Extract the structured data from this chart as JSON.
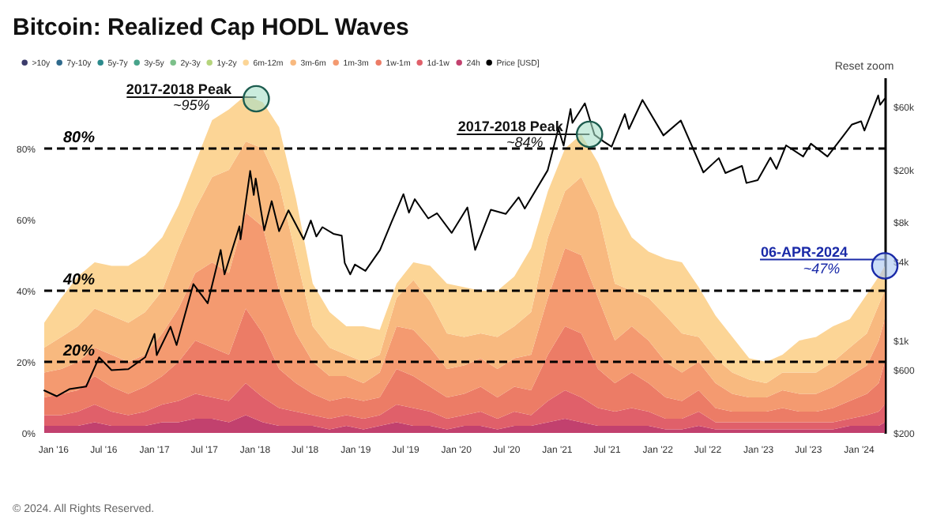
{
  "chart_data": {
    "type": "area",
    "title": "Bitcoin: Realized Cap HODL Waves",
    "stacked": true,
    "log": "y2",
    "legend": "top left",
    "x": [
      "2015-12-01",
      "2016-02",
      "2016-04",
      "2016-06",
      "2016-08",
      "2016-10",
      "2016-12",
      "2017-02",
      "2017-04",
      "2017-06",
      "2017-08",
      "2017-10",
      "2017-12",
      "2018-02",
      "2018-04",
      "2018-06",
      "2018-08",
      "2018-10",
      "2018-12",
      "2019-02",
      "2019-04",
      "2019-06",
      "2019-08",
      "2019-10",
      "2019-12",
      "2020-02",
      "2020-04",
      "2020-06",
      "2020-08",
      "2020-10",
      "2020-12",
      "2021-02",
      "2021-04",
      "2021-06",
      "2021-08",
      "2021-10",
      "2021-12",
      "2022-02",
      "2022-04",
      "2022-06",
      "2022-08",
      "2022-10",
      "2022-12",
      "2023-02",
      "2023-04",
      "2023-06",
      "2023-08",
      "2023-10",
      "2023-12",
      "2024-02",
      "2024-03-15",
      "2024-04-06"
    ],
    "xlim": [
      "2015-12-01",
      "2024-04-06"
    ],
    "xticks": [
      {
        "value": "2016-01",
        "label": "Jan '16"
      },
      {
        "value": "2016-07",
        "label": "Jul '16"
      },
      {
        "value": "2017-01",
        "label": "Jan '17"
      },
      {
        "value": "2017-07",
        "label": "Jul '17"
      },
      {
        "value": "2018-01",
        "label": "Jan '18"
      },
      {
        "value": "2018-07",
        "label": "Jul '18"
      },
      {
        "value": "2019-01",
        "label": "Jan '19"
      },
      {
        "value": "2019-07",
        "label": "Jul '19"
      },
      {
        "value": "2020-01",
        "label": "Jan '20"
      },
      {
        "value": "2020-07",
        "label": "Jul '20"
      },
      {
        "value": "2021-01",
        "label": "Jan '21"
      },
      {
        "value": "2021-07",
        "label": "Jul '21"
      },
      {
        "value": "2022-01",
        "label": "Jan '22"
      },
      {
        "value": "2022-07",
        "label": "Jul '22"
      },
      {
        "value": "2023-01",
        "label": "Jan '23"
      },
      {
        "value": "2023-07",
        "label": "Jul '23"
      },
      {
        "value": "2024-01",
        "label": "Jan '24"
      }
    ],
    "ylim": [
      0,
      100
    ],
    "yticks": [
      {
        "value": 0,
        "label": "0%"
      },
      {
        "value": 20,
        "label": "20%"
      },
      {
        "value": 40,
        "label": "40%"
      },
      {
        "value": 60,
        "label": "60%"
      },
      {
        "value": 80,
        "label": "80%"
      }
    ],
    "y2lim": [
      200,
      100000
    ],
    "y2ticks": [
      {
        "value": 200,
        "label": "$200"
      },
      {
        "value": 600,
        "label": "$600"
      },
      {
        "value": 1000,
        "label": "$1k"
      },
      {
        "value": 4000,
        "label": "$4k"
      },
      {
        "value": 8000,
        "label": "$8k"
      },
      {
        "value": 20000,
        "label": "$20k"
      },
      {
        "value": 60000,
        "label": "$60k"
      }
    ],
    "series": [
      {
        "name": "24h",
        "color": "#c2416e",
        "values": [
          2,
          2,
          2,
          3,
          2,
          2,
          2,
          3,
          3,
          4,
          4,
          3,
          5,
          3,
          2,
          2,
          2,
          1,
          2,
          1,
          2,
          3,
          2,
          2,
          1,
          2,
          2,
          1,
          2,
          2,
          3,
          4,
          3,
          2,
          2,
          2,
          2,
          1,
          1,
          2,
          1,
          1,
          1,
          1,
          1,
          1,
          1,
          1,
          2,
          2,
          2,
          3
        ]
      },
      {
        "name": "1d-1w",
        "color": "#e0606a",
        "values": [
          3,
          3,
          4,
          5,
          4,
          3,
          4,
          5,
          6,
          7,
          6,
          6,
          9,
          7,
          5,
          4,
          3,
          3,
          3,
          3,
          3,
          5,
          5,
          4,
          3,
          3,
          4,
          3,
          4,
          3,
          6,
          8,
          7,
          5,
          4,
          5,
          4,
          3,
          3,
          4,
          2,
          2,
          2,
          2,
          2,
          2,
          2,
          2,
          2,
          3,
          4,
          5
        ]
      },
      {
        "name": "1w-1m",
        "color": "#ec7c66",
        "values": [
          5,
          6,
          6,
          8,
          7,
          6,
          7,
          8,
          11,
          15,
          14,
          13,
          21,
          18,
          11,
          8,
          6,
          5,
          5,
          5,
          5,
          10,
          9,
          7,
          6,
          6,
          7,
          6,
          7,
          7,
          13,
          18,
          18,
          11,
          8,
          10,
          8,
          6,
          5,
          6,
          4,
          3,
          3,
          3,
          4,
          3,
          3,
          4,
          5,
          6,
          8,
          12
        ]
      },
      {
        "name": "1m-3m",
        "color": "#f49a70",
        "values": [
          7,
          7,
          8,
          8,
          9,
          9,
          9,
          12,
          15,
          19,
          24,
          23,
          27,
          30,
          22,
          14,
          9,
          7,
          6,
          5,
          7,
          12,
          13,
          11,
          8,
          8,
          8,
          8,
          8,
          10,
          16,
          22,
          22,
          20,
          12,
          13,
          12,
          10,
          8,
          8,
          7,
          5,
          4,
          4,
          5,
          5,
          5,
          6,
          7,
          8,
          12,
          12
        ]
      },
      {
        "name": "3m-6m",
        "color": "#f8b97f",
        "values": [
          7,
          9,
          10,
          11,
          11,
          11,
          12,
          12,
          17,
          18,
          24,
          29,
          20,
          22,
          30,
          22,
          10,
          8,
          6,
          6,
          5,
          8,
          14,
          13,
          10,
          8,
          7,
          9,
          9,
          12,
          17,
          16,
          22,
          24,
          16,
          10,
          12,
          13,
          11,
          7,
          7,
          6,
          5,
          4,
          5,
          6,
          6,
          7,
          8,
          9,
          10,
          8
        ]
      },
      {
        "name": "6m-12m",
        "color": "#fcd596",
        "values": [
          7,
          11,
          14,
          13,
          14,
          16,
          16,
          15,
          12,
          13,
          16,
          17,
          13,
          13,
          16,
          16,
          12,
          10,
          8,
          10,
          7,
          4,
          5,
          10,
          14,
          14,
          12,
          13,
          14,
          18,
          13,
          12,
          12,
          14,
          22,
          15,
          13,
          16,
          20,
          14,
          12,
          10,
          6,
          6,
          5,
          9,
          10,
          10,
          8,
          11,
          8,
          7
        ]
      },
      {
        "name": "1y-2y",
        "color": "#b5d47c",
        "values": [
          null,
          null,
          null,
          null,
          null,
          null,
          null,
          null,
          null,
          null,
          null,
          null,
          null,
          null,
          null,
          null,
          null,
          null,
          null,
          null,
          null,
          null,
          null,
          null,
          null,
          null,
          null,
          null,
          null,
          null,
          null,
          null,
          null,
          null,
          null,
          null,
          null,
          null,
          null,
          null,
          null,
          null,
          null,
          null,
          null,
          null,
          null,
          null,
          null,
          null,
          null,
          null
        ]
      },
      {
        "name": "2y-3y",
        "color": "#7cc08a",
        "values": [
          null,
          null,
          null,
          null,
          null,
          null,
          null,
          null,
          null,
          null,
          null,
          null,
          null,
          null,
          null,
          null,
          null,
          null,
          null,
          null,
          null,
          null,
          null,
          null,
          null,
          null,
          null,
          null,
          null,
          null,
          null,
          null,
          null,
          null,
          null,
          null,
          null,
          null,
          null,
          null,
          null,
          null,
          null,
          null,
          null,
          null,
          null,
          null,
          null,
          null,
          null,
          null
        ]
      },
      {
        "name": "3y-5y",
        "color": "#47a38a",
        "values": [
          null,
          null,
          null,
          null,
          null,
          null,
          null,
          null,
          null,
          null,
          null,
          null,
          null,
          null,
          null,
          null,
          null,
          null,
          null,
          null,
          null,
          null,
          null,
          null,
          null,
          null,
          null,
          null,
          null,
          null,
          null,
          null,
          null,
          null,
          null,
          null,
          null,
          null,
          null,
          null,
          null,
          null,
          null,
          null,
          null,
          null,
          null,
          null,
          null,
          null,
          null,
          null
        ]
      },
      {
        "name": "5y-7y",
        "color": "#2b8a8c",
        "values": [
          null,
          null,
          null,
          null,
          null,
          null,
          null,
          null,
          null,
          null,
          null,
          null,
          null,
          null,
          null,
          null,
          null,
          null,
          null,
          null,
          null,
          null,
          null,
          null,
          null,
          null,
          null,
          null,
          null,
          null,
          null,
          null,
          null,
          null,
          null,
          null,
          null,
          null,
          null,
          null,
          null,
          null,
          null,
          null,
          null,
          null,
          null,
          null,
          null,
          null,
          null,
          null
        ]
      },
      {
        "name": "7y-10y",
        "color": "#2f6a8c",
        "values": [
          null,
          null,
          null,
          null,
          null,
          null,
          null,
          null,
          null,
          null,
          null,
          null,
          null,
          null,
          null,
          null,
          null,
          null,
          null,
          null,
          null,
          null,
          null,
          null,
          null,
          null,
          null,
          null,
          null,
          null,
          null,
          null,
          null,
          null,
          null,
          null,
          null,
          null,
          null,
          null,
          null,
          null,
          null,
          null,
          null,
          null,
          null,
          null,
          null,
          null,
          null,
          null
        ]
      },
      {
        "name": ">10y",
        "color": "#3b3b6b",
        "values": [
          null,
          null,
          null,
          null,
          null,
          null,
          null,
          null,
          null,
          null,
          null,
          null,
          null,
          null,
          null,
          null,
          null,
          null,
          null,
          null,
          null,
          null,
          null,
          null,
          null,
          null,
          null,
          null,
          null,
          null,
          null,
          null,
          null,
          null,
          null,
          null,
          null,
          null,
          null,
          null,
          null,
          null,
          null,
          null,
          null,
          null,
          null,
          null,
          null,
          null,
          null,
          null
        ]
      },
      {
        "name": "Price [USD]",
        "color": "#000000",
        "type": "line",
        "axis": "y2",
        "x": [
          "2015-12-01",
          "2016-01-15",
          "2016-03-01",
          "2016-05-01",
          "2016-06-17",
          "2016-08-01",
          "2016-10-01",
          "2016-12-01",
          "2017-01-04",
          "2017-01-12",
          "2017-03-03",
          "2017-03-25",
          "2017-05-25",
          "2017-07-16",
          "2017-09-01",
          "2017-09-15",
          "2017-11-08",
          "2017-11-12",
          "2017-12-17",
          "2017-12-30",
          "2018-01-06",
          "2018-02-06",
          "2018-03-05",
          "2018-04-01",
          "2018-05-05",
          "2018-06-29",
          "2018-07-25",
          "2018-08-14",
          "2018-09-05",
          "2018-10-15",
          "2018-11-14",
          "2018-11-25",
          "2018-12-15",
          "2019-01-01",
          "2019-02-08",
          "2019-04-02",
          "2019-05-14",
          "2019-06-26",
          "2019-07-16",
          "2019-08-06",
          "2019-09-24",
          "2019-10-26",
          "2019-12-18",
          "2020-02-13",
          "2020-03-12",
          "2020-05-08",
          "2020-07-01",
          "2020-08-17",
          "2020-09-08",
          "2020-11-30",
          "2021-01-08",
          "2021-01-27",
          "2021-02-21",
          "2021-02-28",
          "2021-04-14",
          "2021-05-19",
          "2021-06-22",
          "2021-07-20",
          "2021-09-06",
          "2021-09-21",
          "2021-11-09",
          "2022-01-24",
          "2022-03-28",
          "2022-05-11",
          "2022-06-18",
          "2022-08-13",
          "2022-09-06",
          "2022-11-05",
          "2022-11-21",
          "2023-01-01",
          "2023-02-16",
          "2023-03-10",
          "2023-04-14",
          "2023-06-15",
          "2023-07-13",
          "2023-09-11",
          "2023-11-01",
          "2023-12-08",
          "2024-01-11",
          "2024-01-23",
          "2024-03-13",
          "2024-03-20",
          "2024-04-06"
        ],
        "values": [
          420,
          380,
          430,
          450,
          750,
          600,
          610,
          750,
          1130,
          780,
          1280,
          930,
          2700,
          1930,
          4900,
          3200,
          7400,
          5900,
          19500,
          12800,
          17100,
          6900,
          11500,
          6800,
          9800,
          5900,
          8200,
          6200,
          7300,
          6500,
          6300,
          3900,
          3200,
          3800,
          3400,
          4900,
          8000,
          13000,
          9400,
          11900,
          8500,
          9300,
          6600,
          10300,
          4900,
          9900,
          9200,
          12300,
          10100,
          19700,
          40900,
          30400,
          57500,
          45200,
          63600,
          36700,
          32500,
          29800,
          52700,
          40600,
          67500,
          36300,
          47100,
          29000,
          19000,
          24400,
          18800,
          21300,
          15800,
          16600,
          24600,
          20200,
          30500,
          25100,
          31400,
          25100,
          34600,
          43800,
          46500,
          39500,
          73000,
          62000,
          68900
        ]
      }
    ],
    "ref_lines": [
      {
        "axis": "y",
        "value": 80,
        "label": "80%",
        "color": "#000000",
        "line_style": "dashed"
      },
      {
        "axis": "y",
        "value": 40,
        "label": "40%",
        "color": "#000000",
        "line_style": "dashed"
      },
      {
        "axis": "y",
        "value": 20,
        "label": "20%",
        "color": "#000000",
        "line_style": "dashed"
      }
    ],
    "annotations": [
      {
        "text": "2017-2018 Peak\n~95%",
        "x": "2018-01-08",
        "y": 94
      },
      {
        "text": "2017-2018 Peak\n~84%",
        "x": "2021-05-01",
        "y": 84
      },
      {
        "text": "06-APR-2024\n~47%",
        "x": "2024-04-06",
        "y": 47
      },
      "Reset zoom",
      "© 2024. All Rights Reserved."
    ]
  }
}
